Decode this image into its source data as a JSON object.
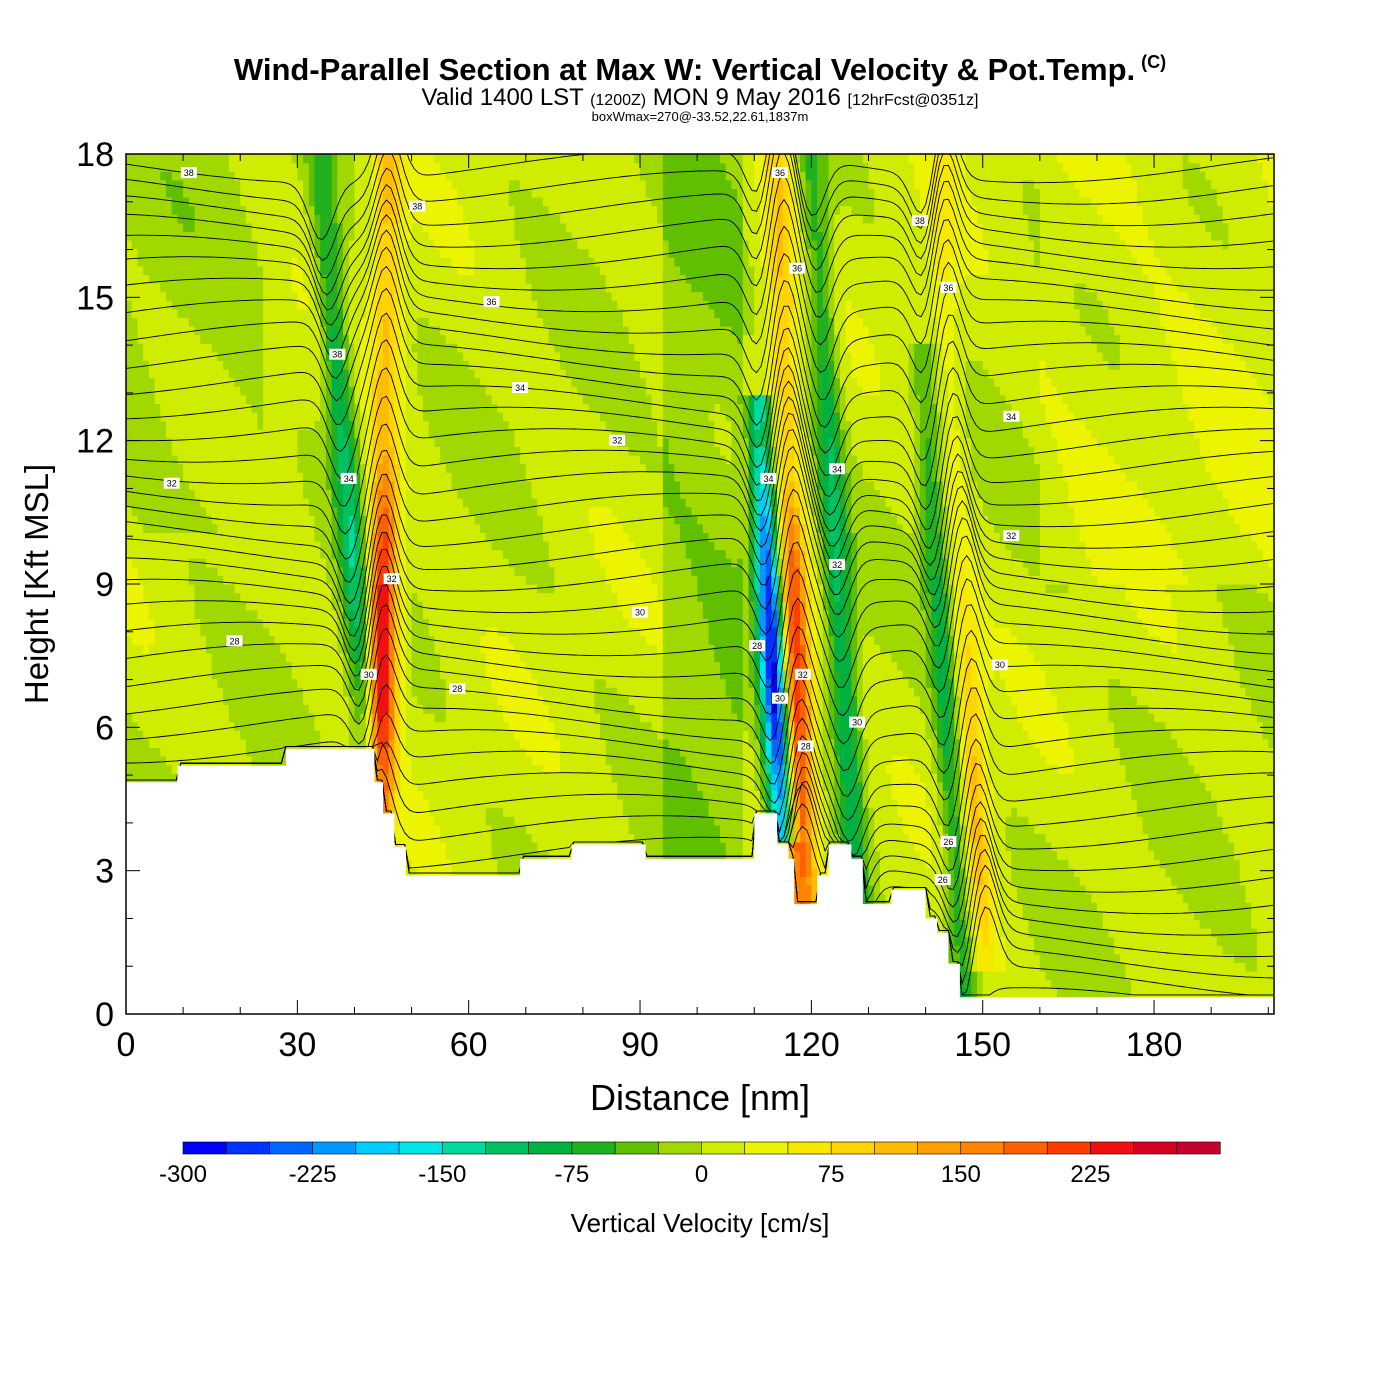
{
  "title": "Wind-Parallel Section at Max W: Vertical Velocity & Pot.Temp.",
  "copyright": "(C)",
  "subtitle_main": "Valid 1400 LST",
  "subtitle_utc": "(1200Z)",
  "subtitle_date": "MON 9 May 2016",
  "subtitle_fcst": "[12hrFcst@0351z]",
  "subtitle2": "boxWmax=270@-33.52,22.61,1837m",
  "chart_data": {
    "type": "heatmap",
    "xlabel": "Distance [nm]",
    "ylabel": "Height [Kft MSL]",
    "xlim": [
      0,
      201
    ],
    "ylim": [
      0,
      18
    ],
    "xticks": [
      0,
      30,
      60,
      90,
      120,
      150,
      180
    ],
    "yticks": [
      0,
      3,
      6,
      9,
      12,
      15,
      18
    ],
    "colorbar": {
      "label": "Vertical Velocity [cm/s]",
      "ticks": [
        -300,
        -225,
        -150,
        -75,
        0,
        75,
        150,
        225
      ],
      "bins": [
        -300,
        -275,
        -250,
        -225,
        -200,
        -175,
        -150,
        -125,
        -100,
        -75,
        -50,
        -25,
        0,
        25,
        50,
        75,
        100,
        125,
        150,
        175,
        200,
        225,
        250,
        275,
        300
      ],
      "colors": [
        "#0000ff",
        "#0033ff",
        "#0066ff",
        "#0099ff",
        "#00ccff",
        "#00e5e5",
        "#00d9a0",
        "#00c060",
        "#00b040",
        "#20b020",
        "#60c000",
        "#a0d800",
        "#d0ec00",
        "#ecf400",
        "#f8e800",
        "#ffd400",
        "#ffbc00",
        "#ffa000",
        "#ff8400",
        "#ff6000",
        "#ff3c00",
        "#f01010",
        "#d80020",
        "#c80030"
      ]
    },
    "terrain": [
      [
        0,
        4.85
      ],
      [
        9,
        4.85
      ],
      [
        9,
        5.2
      ],
      [
        28,
        5.2
      ],
      [
        28,
        5.55
      ],
      [
        43.5,
        5.55
      ],
      [
        43.5,
        4.85
      ],
      [
        45,
        4.85
      ],
      [
        45,
        4.2
      ],
      [
        47,
        4.2
      ],
      [
        47,
        3.5
      ],
      [
        49,
        3.5
      ],
      [
        49,
        2.9
      ],
      [
        69,
        2.9
      ],
      [
        69,
        3.25
      ],
      [
        78,
        3.25
      ],
      [
        78,
        3.55
      ],
      [
        91,
        3.55
      ],
      [
        91,
        3.25
      ],
      [
        110,
        3.25
      ],
      [
        110,
        4.2
      ],
      [
        114,
        4.2
      ],
      [
        114,
        3.55
      ],
      [
        116,
        3.55
      ],
      [
        116,
        3.25
      ],
      [
        117,
        3.25
      ],
      [
        117,
        2.3
      ],
      [
        121,
        2.3
      ],
      [
        121,
        2.9
      ],
      [
        123,
        2.9
      ],
      [
        123,
        3.55
      ],
      [
        127,
        3.55
      ],
      [
        127,
        3.25
      ],
      [
        129,
        3.25
      ],
      [
        129,
        2.3
      ],
      [
        134,
        2.3
      ],
      [
        134,
        2.6
      ],
      [
        140,
        2.6
      ],
      [
        140,
        2.0
      ],
      [
        142,
        2.0
      ],
      [
        142,
        1.7
      ],
      [
        144,
        1.7
      ],
      [
        144,
        1.05
      ],
      [
        146,
        1.05
      ],
      [
        146,
        0.35
      ],
      [
        201,
        0.35
      ]
    ],
    "updrafts": [
      {
        "name": "main-updraft",
        "w_max": 270,
        "x_base": 44.5,
        "x_top": 46,
        "y_base": 4.5,
        "y_top": 18
      },
      {
        "name": "updraft-120",
        "w_max": 250,
        "x_base": 118.5,
        "x_top": 114,
        "y_base": 2.8,
        "y_top": 18
      },
      {
        "name": "updraft-147",
        "w_max": 110,
        "x_base": 150,
        "x_top": 143,
        "y_base": 1.5,
        "y_top": 15
      }
    ],
    "downdrafts": [
      {
        "name": "downdraft-40",
        "w_min": -120,
        "x_base": 42.5,
        "x_top": 34,
        "y_base": 5.5,
        "y_top": 18
      },
      {
        "name": "downdraft-114",
        "w_min": -300,
        "x_base": 115,
        "x_top": 111,
        "y_base": 4.2,
        "y_top": 12
      },
      {
        "name": "downdraft-128",
        "w_min": -110,
        "x_base": 128,
        "x_top": 120,
        "y_base": 2.5,
        "y_top": 18
      },
      {
        "name": "downdraft-144",
        "w_min": -100,
        "x_base": 147,
        "x_top": 140,
        "y_base": 0.8,
        "y_top": 13
      }
    ],
    "theta_contours": [
      28,
      30,
      32,
      34,
      36,
      38
    ],
    "contour_labels": [
      {
        "text": "38",
        "x": 11,
        "y": 17.6
      },
      {
        "text": "38",
        "x": 51,
        "y": 16.9
      },
      {
        "text": "36",
        "x": 64,
        "y": 14.9
      },
      {
        "text": "38",
        "x": 37,
        "y": 13.8
      },
      {
        "text": "34",
        "x": 69,
        "y": 13.1
      },
      {
        "text": "34",
        "x": 39,
        "y": 11.2
      },
      {
        "text": "32",
        "x": 86,
        "y": 12.0
      },
      {
        "text": "32",
        "x": 8,
        "y": 11.1
      },
      {
        "text": "32",
        "x": 46.5,
        "y": 9.1
      },
      {
        "text": "30",
        "x": 90,
        "y": 8.4
      },
      {
        "text": "28",
        "x": 19,
        "y": 7.8
      },
      {
        "text": "30",
        "x": 42.5,
        "y": 7.1
      },
      {
        "text": "28",
        "x": 58,
        "y": 6.8
      },
      {
        "text": "36",
        "x": 114.5,
        "y": 17.6
      },
      {
        "text": "36",
        "x": 117.5,
        "y": 15.6
      },
      {
        "text": "38",
        "x": 139,
        "y": 16.6
      },
      {
        "text": "36",
        "x": 144,
        "y": 15.2
      },
      {
        "text": "34",
        "x": 112.5,
        "y": 11.2
      },
      {
        "text": "34",
        "x": 124.5,
        "y": 11.4
      },
      {
        "text": "34",
        "x": 155,
        "y": 12.5
      },
      {
        "text": "32",
        "x": 124.5,
        "y": 9.4
      },
      {
        "text": "32",
        "x": 155,
        "y": 10.0
      },
      {
        "text": "28",
        "x": 110.5,
        "y": 7.7
      },
      {
        "text": "32",
        "x": 118.5,
        "y": 7.1
      },
      {
        "text": "30",
        "x": 114.5,
        "y": 6.6
      },
      {
        "text": "30",
        "x": 153,
        "y": 7.3
      },
      {
        "text": "30",
        "x": 128,
        "y": 6.1
      },
      {
        "text": "28",
        "x": 119,
        "y": 5.6
      },
      {
        "text": "26",
        "x": 144,
        "y": 3.6
      },
      {
        "text": "26",
        "x": 143,
        "y": 2.8
      }
    ]
  }
}
